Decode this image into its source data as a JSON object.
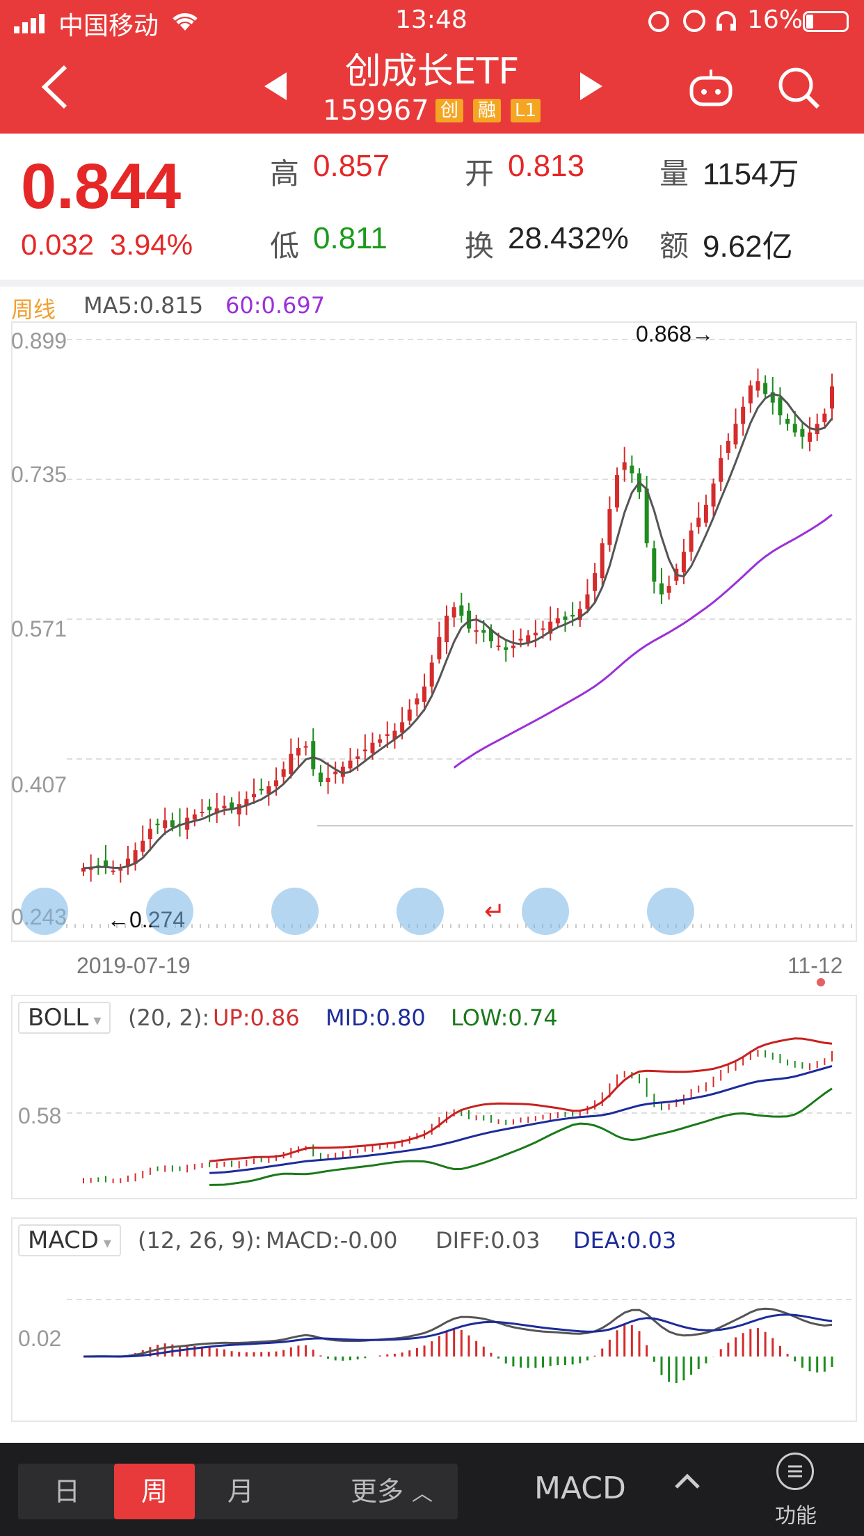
{
  "status": {
    "carrier": "中国移动",
    "time": "13:48",
    "battery": "16%"
  },
  "header": {
    "title": "创成长ETF",
    "code": "159967",
    "tags": [
      "创",
      "融",
      "L1"
    ]
  },
  "quote": {
    "price": "0.844",
    "change": "0.032",
    "change_pct": "3.94%",
    "high_label": "高",
    "high": "0.857",
    "open_label": "开",
    "open": "0.813",
    "volume_label": "量",
    "volume": "1154万",
    "low_label": "低",
    "low": "0.811",
    "turnover_label": "换",
    "turnover": "28.432%",
    "amount_label": "额",
    "amount": "9.62亿"
  },
  "main_chart": {
    "period_label": "周线",
    "ma5": "MA5:0.815",
    "ma60": "60:0.697",
    "y_ticks": [
      "0.899",
      "0.735",
      "0.571",
      "0.407",
      "0.243"
    ],
    "high_marker": "0.868→",
    "low_marker": "←0.274",
    "x_start": "2019-07-19",
    "x_end": "11-12"
  },
  "boll": {
    "name": "BOLL",
    "params": "(20, 2):",
    "up": "UP:0.86",
    "mid": "MID:0.80",
    "low": "LOW:0.74",
    "y_tick": "0.58"
  },
  "macd": {
    "name": "MACD",
    "params": "(12, 26, 9):",
    "macd": "MACD:-0.00",
    "diff": "DIFF:0.03",
    "dea": "DEA:0.03",
    "y_tick": "0.02"
  },
  "bottom": {
    "tabs": [
      "日",
      "周",
      "月"
    ],
    "active": "周",
    "more": "更多",
    "indicator": "MACD",
    "func": "功能"
  },
  "chart_data": {
    "type": "candlestick",
    "ylim": [
      0.243,
      0.899
    ],
    "closes": [
      0.279,
      0.28,
      0.282,
      0.28,
      0.276,
      0.278,
      0.29,
      0.3,
      0.311,
      0.325,
      0.33,
      0.335,
      0.327,
      0.33,
      0.338,
      0.342,
      0.345,
      0.347,
      0.349,
      0.352,
      0.348,
      0.354,
      0.36,
      0.366,
      0.37,
      0.375,
      0.382,
      0.395,
      0.413,
      0.42,
      0.422,
      0.395,
      0.38,
      0.385,
      0.392,
      0.398,
      0.405,
      0.41,
      0.418,
      0.426,
      0.43,
      0.436,
      0.44,
      0.45,
      0.465,
      0.478,
      0.492,
      0.52,
      0.55,
      0.575,
      0.585,
      0.575,
      0.56,
      0.558,
      0.555,
      0.545,
      0.54,
      0.535,
      0.54,
      0.548,
      0.552,
      0.555,
      0.56,
      0.568,
      0.572,
      0.57,
      0.574,
      0.583,
      0.6,
      0.625,
      0.66,
      0.7,
      0.74,
      0.755,
      0.742,
      0.72,
      0.66,
      0.615,
      0.6,
      0.61,
      0.63,
      0.65,
      0.675,
      0.69,
      0.705,
      0.73,
      0.76,
      0.78,
      0.8,
      0.82,
      0.845,
      0.85,
      0.835,
      0.825,
      0.81,
      0.8,
      0.79,
      0.785,
      0.79,
      0.8,
      0.812,
      0.844
    ]
  }
}
